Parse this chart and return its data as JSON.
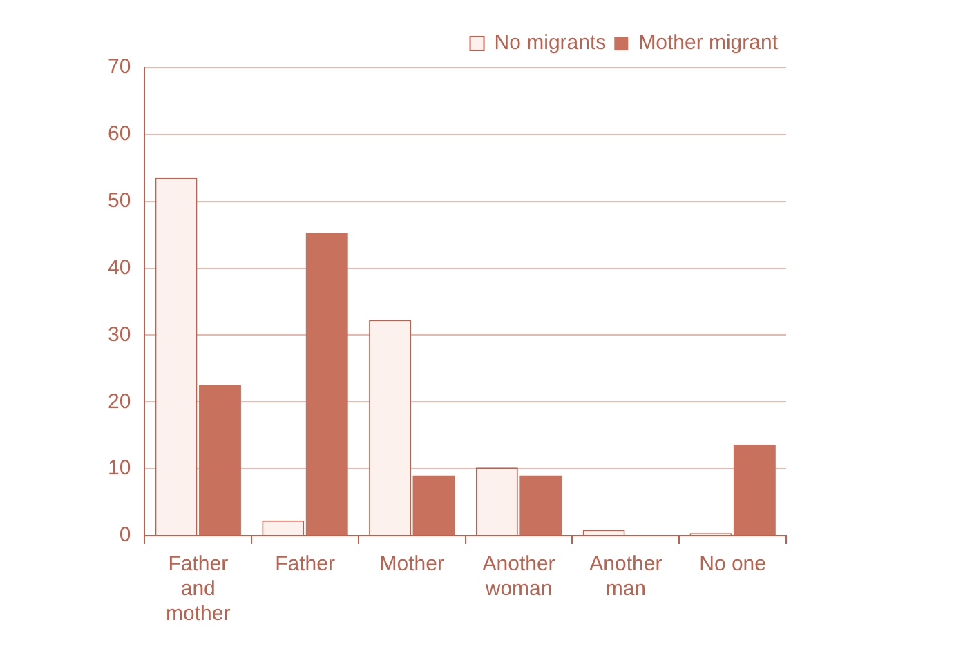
{
  "chart_data": {
    "type": "bar",
    "categories": [
      "Father and mother",
      "Father",
      "Mother",
      "Another woman",
      "Another man",
      "No one"
    ],
    "series": [
      {
        "name": "No migrants",
        "color": "#fdf1ee",
        "values": [
          53.5,
          2.3,
          32.3,
          10.2,
          0.9,
          0.4
        ]
      },
      {
        "name": "Mother migrant",
        "color": "#c8725e",
        "values": [
          22.6,
          45.3,
          9.0,
          9.0,
          0,
          13.6
        ]
      }
    ],
    "ylim": [
      0,
      70
    ],
    "yticks": [
      0,
      10,
      20,
      30,
      40,
      50,
      60,
      70
    ],
    "grid": "y",
    "legend": "top right"
  }
}
